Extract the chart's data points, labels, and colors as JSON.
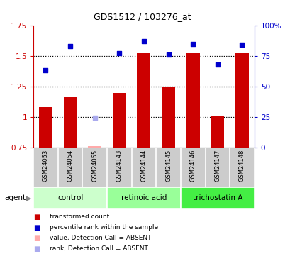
{
  "title": "GDS1512 / 103276_at",
  "samples": [
    "GSM24053",
    "GSM24054",
    "GSM24055",
    "GSM24143",
    "GSM24144",
    "GSM24145",
    "GSM24146",
    "GSM24147",
    "GSM24148"
  ],
  "bar_values": [
    1.08,
    1.16,
    0.76,
    1.2,
    1.52,
    1.25,
    1.52,
    1.01,
    1.52
  ],
  "bar_absent": [
    false,
    false,
    true,
    false,
    false,
    false,
    false,
    false,
    false
  ],
  "rank_values": [
    63,
    83,
    24.5,
    77,
    87,
    76,
    85,
    68,
    84
  ],
  "rank_absent": [
    false,
    false,
    true,
    false,
    false,
    false,
    false,
    false,
    false
  ],
  "ylim_left": [
    0.75,
    1.75
  ],
  "ylim_right": [
    0,
    100
  ],
  "yticks_left": [
    0.75,
    1.0,
    1.25,
    1.5,
    1.75
  ],
  "yticks_right": [
    0,
    25,
    50,
    75,
    100
  ],
  "ytick_labels_left": [
    "0.75",
    "1",
    "1.25",
    "1.5",
    "1.75"
  ],
  "ytick_labels_right": [
    "0",
    "25",
    "50",
    "75",
    "100%"
  ],
  "hlines": [
    1.0,
    1.25,
    1.5
  ],
  "groups": [
    {
      "label": "control",
      "start": 0,
      "end": 3,
      "color": "#ccffcc"
    },
    {
      "label": "retinoic acid",
      "start": 3,
      "end": 6,
      "color": "#99ff99"
    },
    {
      "label": "trichostatin A",
      "start": 6,
      "end": 9,
      "color": "#44ee44"
    }
  ],
  "bar_color": "#cc0000",
  "bar_absent_color": "#ffaaaa",
  "rank_color": "#0000cc",
  "rank_absent_color": "#aaaaee",
  "bar_width": 0.55,
  "bg_color": "#ffffff",
  "legend_items": [
    {
      "label": "transformed count",
      "color": "#cc0000"
    },
    {
      "label": "percentile rank within the sample",
      "color": "#0000cc"
    },
    {
      "label": "value, Detection Call = ABSENT",
      "color": "#ffaaaa"
    },
    {
      "label": "rank, Detection Call = ABSENT",
      "color": "#aaaaee"
    }
  ]
}
